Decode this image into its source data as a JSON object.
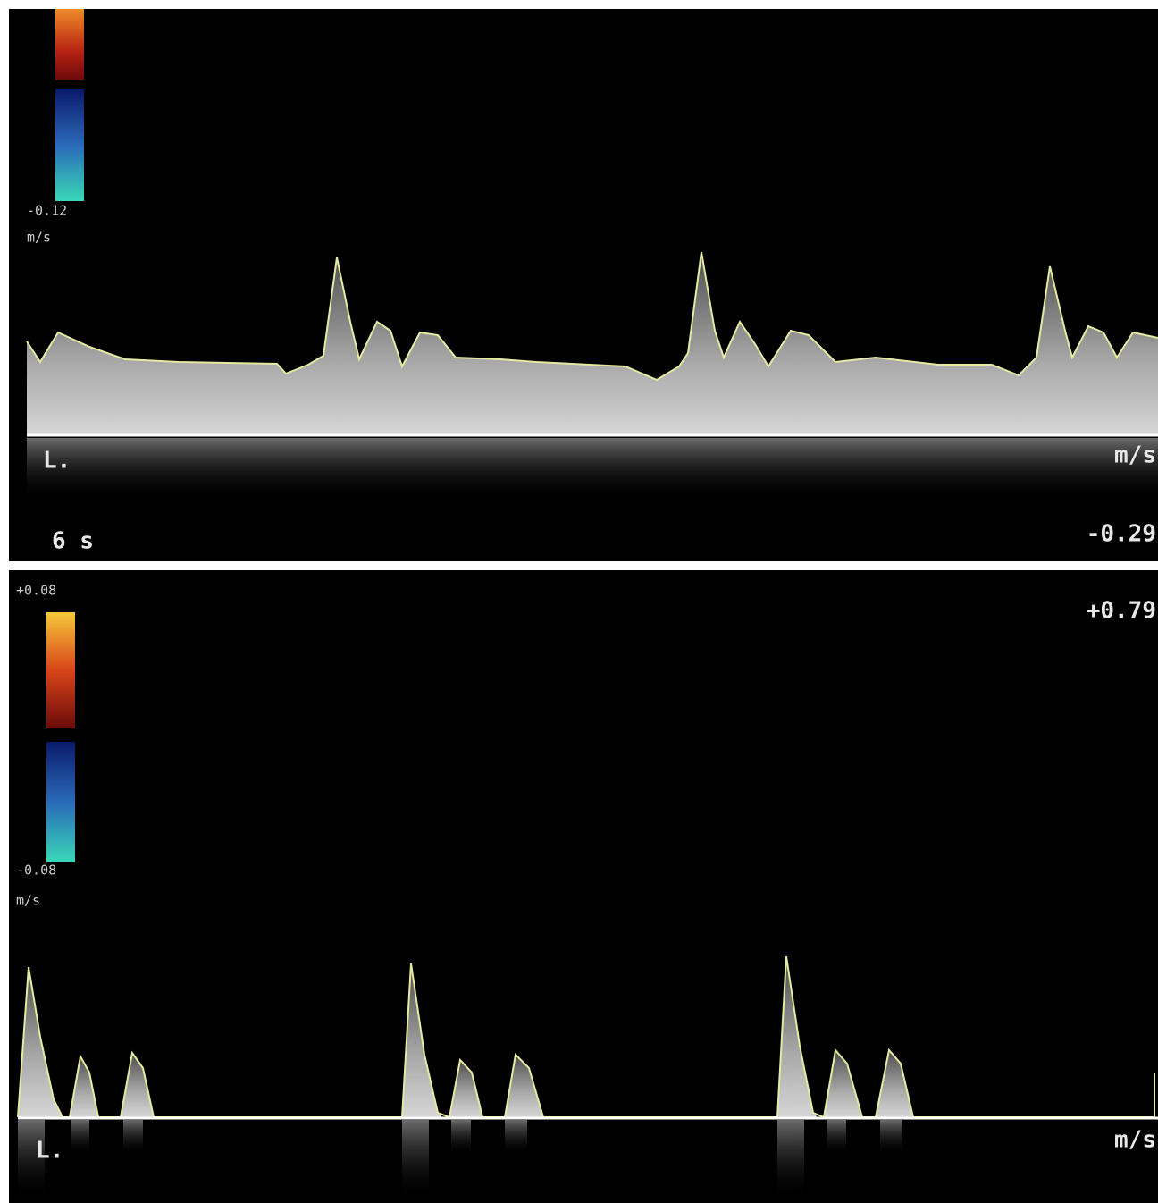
{
  "panels": [
    {
      "scale_label": "-0.12",
      "scale_unit": "m/s",
      "marker": "L.",
      "axis_unit": "m/s",
      "time_label": "6 s",
      "axis_label": "-0.29"
    },
    {
      "scale_top_label": "+0.08",
      "scale_bottom_label": "-0.08",
      "scale_unit": "m/s",
      "axis_label": "+0.79",
      "marker": "L.",
      "axis_unit": "m/s"
    }
  ]
}
